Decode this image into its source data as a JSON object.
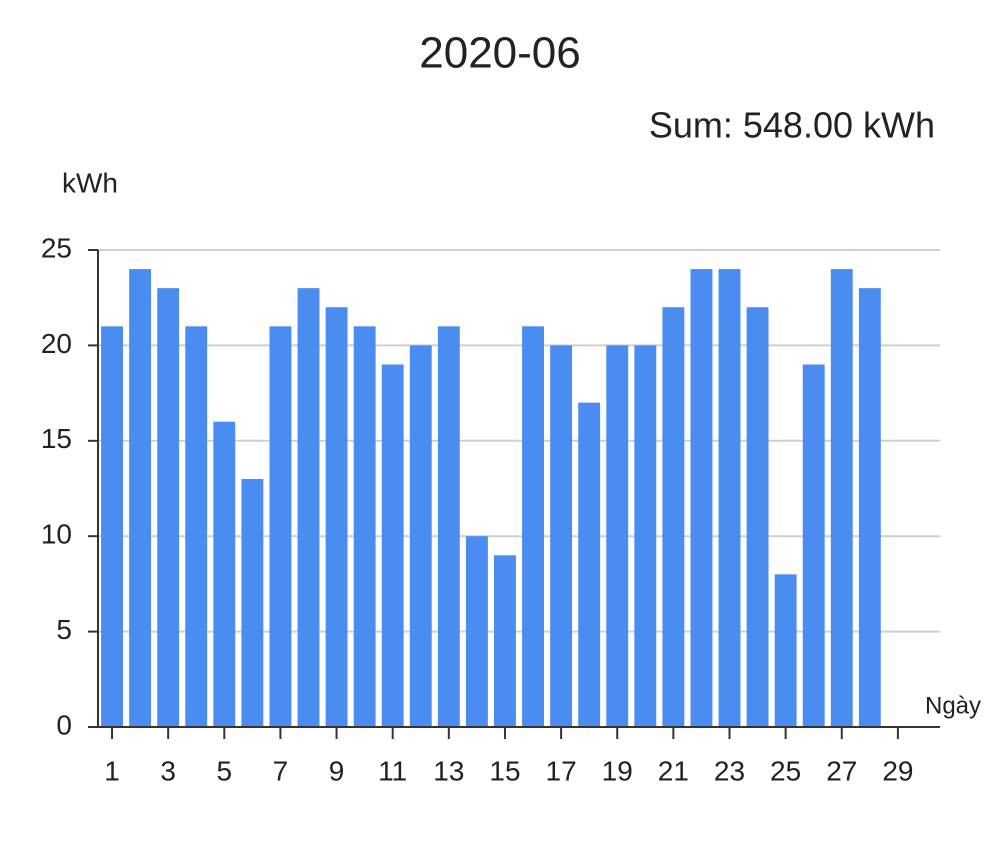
{
  "chart_data": {
    "type": "bar",
    "title": "2020-06",
    "subtitle": "Sum: 548.00 kWh",
    "y_label": "kWh",
    "x_label": "Ngày",
    "categories": [
      "1",
      null,
      "3",
      null,
      "5",
      null,
      "7",
      null,
      "9",
      null,
      "11",
      null,
      "13",
      null,
      "15",
      null,
      "17",
      null,
      "19",
      null,
      "21",
      null,
      "23",
      null,
      "25",
      null,
      "27",
      null,
      "29",
      null
    ],
    "values": [
      21,
      24,
      23,
      21,
      16,
      13,
      21,
      23,
      22,
      21,
      19,
      20,
      21,
      10,
      9,
      21,
      20,
      17,
      20,
      20,
      22,
      24,
      24,
      22,
      8,
      19,
      24,
      23,
      null,
      null
    ],
    "color": "#4a8cf0",
    "ylim": [
      0,
      25
    ],
    "yticks": [
      0,
      5,
      10,
      15,
      20,
      25
    ],
    "grid": true
  }
}
